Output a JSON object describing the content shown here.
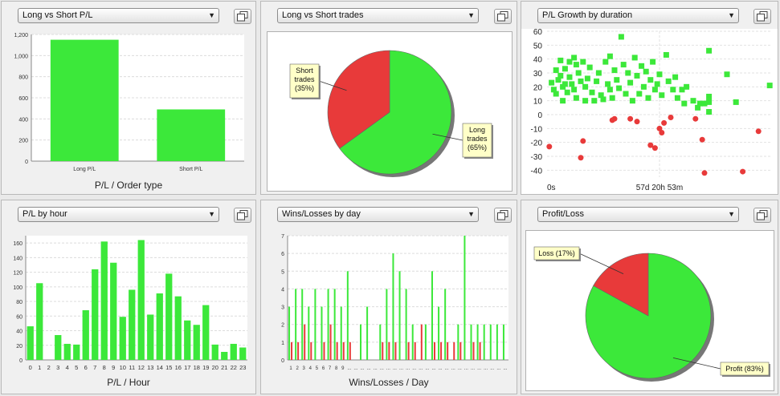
{
  "panels": [
    {
      "select_label": "Long vs Short P/L",
      "caption": "P/L / Order type"
    },
    {
      "select_label": "Long vs Short trades",
      "caption": ""
    },
    {
      "select_label": "P/L Growth by duration",
      "caption": ""
    },
    {
      "select_label": "P/L by hour",
      "caption": "P/L / Hour"
    },
    {
      "select_label": "Wins/Losses by day",
      "caption": "Wins/Losses / Day"
    },
    {
      "select_label": "Profit/Loss",
      "caption": ""
    }
  ],
  "colors": {
    "green": "#3ce83a",
    "red": "#e83a3a",
    "panel": "#f0f0f0"
  },
  "chart_data": [
    {
      "type": "bar",
      "categories": [
        "Long P/L",
        "Short P/L"
      ],
      "values": [
        1150,
        490
      ],
      "ylim": [
        0,
        1200
      ],
      "yticks": [
        "0",
        "200",
        "400",
        "600",
        "800",
        "1,000",
        "1,200"
      ],
      "xlabel": "P/L / Order type"
    },
    {
      "type": "pie",
      "slices": [
        {
          "label": "Long trades (65%)",
          "lines": [
            "Long",
            "trades",
            "(65%)"
          ],
          "value": 65,
          "color": "#3ce83a"
        },
        {
          "label": "Short trades (35%)",
          "lines": [
            "Short",
            "trades",
            "(35%)"
          ],
          "value": 35,
          "color": "#e83a3a"
        }
      ]
    },
    {
      "type": "scatter",
      "ylim": [
        -45,
        60
      ],
      "yticks": [
        "60",
        "50",
        "40",
        "30",
        "20",
        "10",
        "0",
        "-10",
        "-20",
        "-30",
        "-40"
      ],
      "xticks": [
        "0s",
        "57d 20h 53m"
      ],
      "xlim": [
        0,
        100
      ],
      "series": [
        {
          "name": "win",
          "color": "#3ce83a",
          "marker": "square",
          "points": [
            [
              2,
              23
            ],
            [
              3,
              18
            ],
            [
              4,
              32
            ],
            [
              4,
              15
            ],
            [
              5,
              25
            ],
            [
              6,
              39
            ],
            [
              6,
              28
            ],
            [
              7,
              20
            ],
            [
              7,
              10
            ],
            [
              8,
              33
            ],
            [
              8,
              22
            ],
            [
              9,
              16
            ],
            [
              10,
              38
            ],
            [
              10,
              27
            ],
            [
              11,
              22
            ],
            [
              12,
              41
            ],
            [
              12,
              18
            ],
            [
              13,
              36
            ],
            [
              13,
              12
            ],
            [
              14,
              30
            ],
            [
              15,
              24
            ],
            [
              16,
              38
            ],
            [
              17,
              20
            ],
            [
              17,
              10
            ],
            [
              18,
              26
            ],
            [
              19,
              34
            ],
            [
              20,
              16
            ],
            [
              21,
              10
            ],
            [
              22,
              24
            ],
            [
              23,
              30
            ],
            [
              24,
              14
            ],
            [
              25,
              11
            ],
            [
              26,
              38
            ],
            [
              27,
              22
            ],
            [
              28,
              42
            ],
            [
              28,
              18
            ],
            [
              29,
              12
            ],
            [
              30,
              32
            ],
            [
              31,
              25
            ],
            [
              32,
              19
            ],
            [
              33,
              56
            ],
            [
              34,
              36
            ],
            [
              35,
              15
            ],
            [
              36,
              30
            ],
            [
              37,
              23
            ],
            [
              38,
              10
            ],
            [
              39,
              41
            ],
            [
              40,
              28
            ],
            [
              41,
              15
            ],
            [
              42,
              35
            ],
            [
              43,
              20
            ],
            [
              44,
              31
            ],
            [
              45,
              12
            ],
            [
              46,
              25
            ],
            [
              47,
              38
            ],
            [
              48,
              18
            ],
            [
              49,
              22
            ],
            [
              50,
              29
            ],
            [
              51,
              14
            ],
            [
              53,
              43
            ],
            [
              54,
              24
            ],
            [
              56,
              18
            ],
            [
              57,
              27
            ],
            [
              58,
              12
            ],
            [
              60,
              18
            ],
            [
              61,
              8
            ],
            [
              62,
              20
            ],
            [
              65,
              10
            ],
            [
              67,
              5
            ],
            [
              68,
              8
            ],
            [
              70,
              8
            ],
            [
              72,
              46
            ],
            [
              72,
              13
            ],
            [
              72,
              9
            ],
            [
              72,
              2
            ],
            [
              80,
              29
            ],
            [
              84,
              9
            ],
            [
              99,
              21
            ]
          ]
        },
        {
          "name": "loss",
          "color": "#e83a3a",
          "marker": "circle",
          "points": [
            [
              1,
              -23
            ],
            [
              15,
              -31
            ],
            [
              16,
              -19
            ],
            [
              29,
              -4
            ],
            [
              30,
              -3
            ],
            [
              37,
              -3
            ],
            [
              40,
              -5
            ],
            [
              46,
              -22
            ],
            [
              48,
              -24
            ],
            [
              50,
              -10
            ],
            [
              51,
              -13
            ],
            [
              52,
              -6
            ],
            [
              55,
              -2
            ],
            [
              66,
              -3
            ],
            [
              69,
              -18
            ],
            [
              70,
              -42
            ],
            [
              87,
              -41
            ],
            [
              94,
              -12
            ]
          ]
        }
      ]
    },
    {
      "type": "bar",
      "categories": [
        "0",
        "1",
        "2",
        "3",
        "4",
        "5",
        "6",
        "7",
        "8",
        "9",
        "10",
        "11",
        "12",
        "13",
        "14",
        "15",
        "16",
        "17",
        "18",
        "19",
        "20",
        "21",
        "22",
        "23"
      ],
      "values": [
        46,
        105,
        0,
        34,
        22,
        21,
        68,
        124,
        162,
        133,
        59,
        96,
        164,
        62,
        91,
        118,
        87,
        54,
        48,
        75,
        21,
        11,
        22,
        17
      ],
      "ylim": [
        0,
        170
      ],
      "yticks": [
        "0",
        "20",
        "40",
        "60",
        "80",
        "100",
        "120",
        "140",
        "160"
      ],
      "xlabel": "P/L / Hour"
    },
    {
      "type": "bar",
      "categories": [
        "1",
        "2",
        "3",
        "4",
        "5",
        "6",
        "7",
        "8",
        "9",
        "...",
        "...",
        "...",
        "...",
        "...",
        "...",
        "...",
        "...",
        "...",
        "...",
        "...",
        "...",
        "...",
        "...",
        "...",
        "...",
        "...",
        "...",
        "...",
        "...",
        "...",
        "...",
        "...",
        "...",
        "..."
      ],
      "series": [
        {
          "name": "wins",
          "color": "#3ce83a",
          "values": [
            3,
            4,
            4,
            3,
            4,
            3,
            4,
            4,
            3,
            5,
            0,
            2,
            3,
            0,
            2,
            4,
            6,
            5,
            4,
            2,
            0,
            2,
            5,
            3,
            4,
            0,
            2,
            7,
            2,
            2,
            2,
            2,
            2,
            2
          ]
        },
        {
          "name": "losses",
          "color": "#e83a3a",
          "values": [
            1,
            1,
            2,
            1,
            0,
            1,
            2,
            1,
            1,
            1,
            0,
            0,
            0,
            0,
            1,
            1,
            1,
            0,
            1,
            1,
            2,
            0,
            1,
            1,
            1,
            1,
            1,
            0,
            1,
            1,
            0,
            0,
            0,
            0
          ]
        }
      ],
      "ylim": [
        0,
        7
      ],
      "yticks": [
        "0",
        "1",
        "2",
        "3",
        "4",
        "5",
        "6",
        "7"
      ],
      "xlabel": "Wins/Losses / Day"
    },
    {
      "type": "pie",
      "slices": [
        {
          "label": "Profit (83%)",
          "lines": [
            "Profit (83%)"
          ],
          "value": 83,
          "color": "#3ce83a"
        },
        {
          "label": "Loss (17%)",
          "lines": [
            "Loss (17%)"
          ],
          "value": 17,
          "color": "#e83a3a"
        }
      ]
    }
  ]
}
